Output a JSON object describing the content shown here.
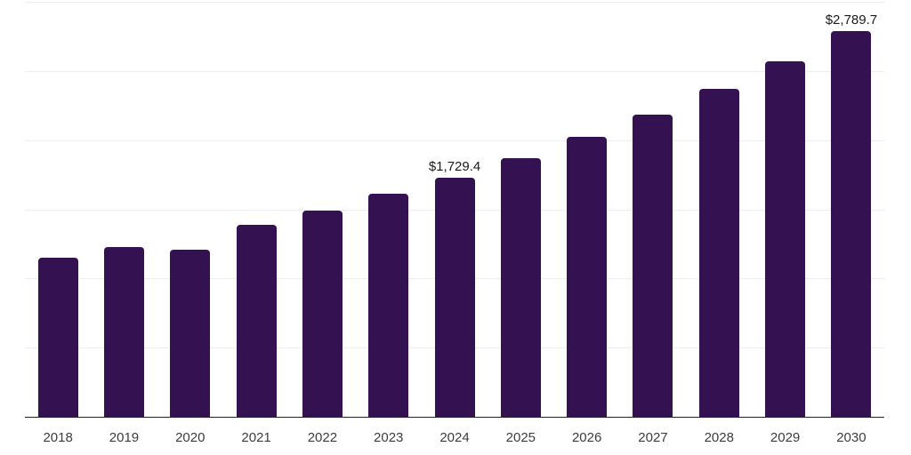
{
  "chart_data": {
    "type": "bar",
    "title": "",
    "xlabel": "",
    "ylabel": "",
    "categories": [
      "2018",
      "2019",
      "2020",
      "2021",
      "2022",
      "2023",
      "2024",
      "2025",
      "2026",
      "2027",
      "2028",
      "2029",
      "2030"
    ],
    "values": [
      1150,
      1230,
      1210,
      1385,
      1490,
      1610,
      1729.4,
      1870,
      2025,
      2185,
      2370,
      2570,
      2789.7
    ],
    "data_labels": [
      "",
      "",
      "",
      "",
      "",
      "",
      "$1,729.4",
      "",
      "",
      "",
      "",
      "",
      "$2,789.7"
    ],
    "ylim": [
      0,
      3000
    ],
    "gridline_values": [
      500,
      1000,
      1500,
      2000,
      2500,
      3000
    ],
    "grid": "horizontal",
    "legend_position": "none",
    "styles": {
      "bar_color": "#341251",
      "gridline_color": "#ededed",
      "axis_line_color": "#222222",
      "tick_label_color": "#3c3c3c",
      "data_label_color": "#1a1a1a",
      "background": "#ffffff"
    }
  }
}
